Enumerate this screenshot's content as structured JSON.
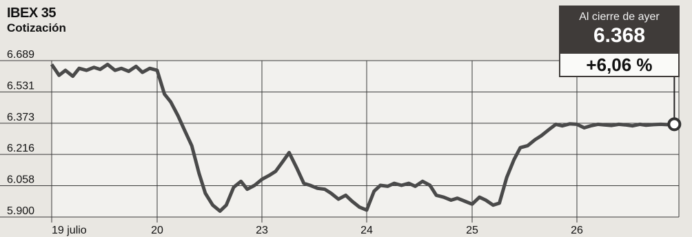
{
  "title": "IBEX 35",
  "subtitle": "Cotización",
  "callout": {
    "label": "Al cierre de ayer",
    "value": "6.368",
    "change": "+6,06 %"
  },
  "colors": {
    "line": "#4a4a4a",
    "grid": "#3a3a3a",
    "plot_bg": "#f2f1ee",
    "callout_bg": "#3f3b39"
  },
  "chart_data": {
    "type": "line",
    "title": "IBEX 35",
    "subtitle": "Cotización",
    "xlabel": "",
    "ylabel": "",
    "ylim": [
      5900,
      6689
    ],
    "yticks": [
      5900,
      6058,
      6216,
      6373,
      6531,
      6689
    ],
    "ytick_labels": [
      "5.900",
      "6.058",
      "6.216",
      "6.373",
      "6.531",
      "6.689"
    ],
    "xlim": [
      0,
      6
    ],
    "xticks": [
      0,
      1,
      2,
      3,
      4,
      5
    ],
    "xtick_labels": [
      "19 julio",
      "20",
      "23",
      "24",
      "25",
      "26"
    ],
    "grid": true,
    "series": [
      {
        "x": [
          0.0,
          0.07,
          0.13,
          0.2,
          0.26,
          0.33,
          0.4,
          0.46,
          0.53,
          0.6,
          0.66,
          0.73,
          0.8,
          0.86,
          0.93,
          1.0,
          1.07,
          1.13,
          1.2,
          1.26,
          1.33,
          1.4,
          1.46,
          1.53,
          1.6,
          1.66,
          1.73,
          1.8,
          1.86,
          1.93,
          2.0,
          2.07,
          2.13,
          2.2,
          2.26,
          2.33,
          2.4,
          2.46,
          2.53,
          2.6,
          2.66,
          2.73,
          2.8,
          2.86,
          2.93,
          3.0,
          3.07,
          3.13,
          3.2,
          3.26,
          3.33,
          3.4,
          3.46,
          3.53,
          3.6,
          3.66,
          3.73,
          3.8,
          3.86,
          3.93,
          4.0,
          4.07,
          4.13,
          4.2,
          4.26,
          4.33,
          4.4,
          4.46,
          4.53,
          4.6,
          4.66,
          4.73,
          4.8,
          4.86,
          4.93,
          5.0,
          5.07,
          5.13,
          5.2,
          5.26,
          5.33,
          5.4,
          5.46,
          5.53,
          5.6,
          5.66,
          5.73,
          5.8,
          5.86,
          5.93
        ],
        "values": [
          6670,
          6615,
          6640,
          6610,
          6650,
          6640,
          6655,
          6645,
          6670,
          6640,
          6650,
          6635,
          6660,
          6630,
          6650,
          6640,
          6520,
          6480,
          6410,
          6340,
          6260,
          6120,
          6020,
          5960,
          5930,
          5960,
          6050,
          6080,
          6040,
          6060,
          6090,
          6110,
          6130,
          6180,
          6225,
          6150,
          6070,
          6060,
          6045,
          6040,
          6020,
          5990,
          6010,
          5980,
          5950,
          5935,
          6030,
          6060,
          6055,
          6070,
          6060,
          6070,
          6055,
          6080,
          6060,
          6010,
          6000,
          5985,
          5995,
          5980,
          5965,
          6000,
          5985,
          5960,
          5970,
          6100,
          6190,
          6250,
          6260,
          6290,
          6310,
          6340,
          6368,
          6360,
          6370,
          6368,
          6350,
          6360,
          6368,
          6365,
          6362,
          6368,
          6365,
          6360,
          6368,
          6363,
          6366,
          6368,
          6366,
          6368
        ]
      }
    ],
    "annotation": {
      "label": "Al cierre de ayer",
      "value": "6.368",
      "change": "+6,06 %",
      "point_x": 5.93,
      "point_y": 6368
    }
  }
}
